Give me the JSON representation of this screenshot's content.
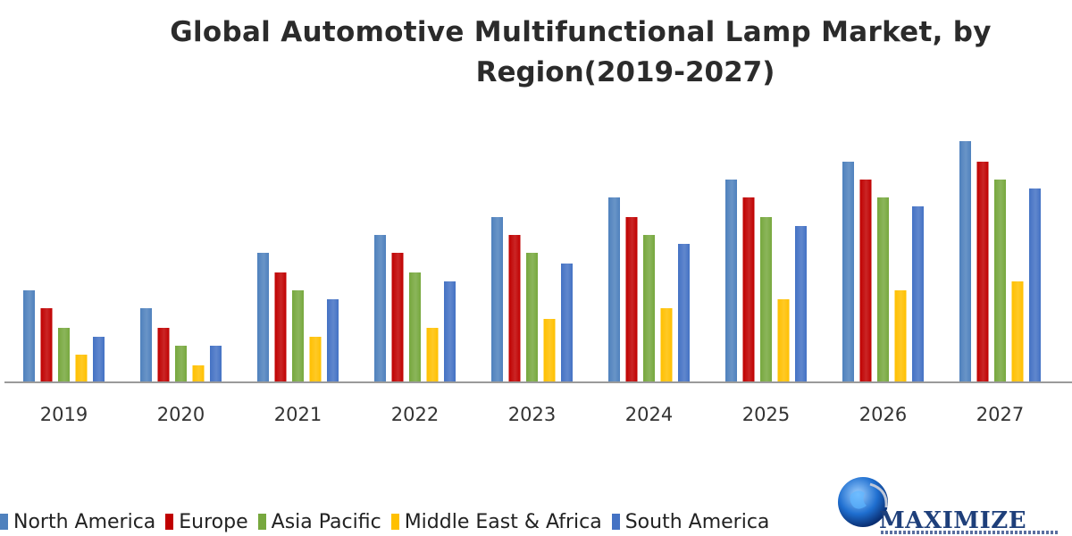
{
  "chart_data": {
    "type": "bar",
    "title_line1": "Global Automotive Multifunctional  Lamp Market, by",
    "title_line2": "Region(2019-2027)",
    "xlabel": "",
    "ylabel": "",
    "categories": [
      "2019",
      "2020",
      "2021",
      "2022",
      "2023",
      "2024",
      "2025",
      "2026",
      "2027"
    ],
    "ylim": [
      0,
      300
    ],
    "grid": false,
    "legend_position": "bottom",
    "series": [
      {
        "name": "North America",
        "color": "#4f81bd",
        "values": [
          103,
          83,
          145,
          165,
          185,
          207,
          227,
          247,
          270
        ]
      },
      {
        "name": "Europe",
        "color": "#c00000",
        "values": [
          83,
          61,
          123,
          145,
          165,
          185,
          207,
          227,
          247
        ]
      },
      {
        "name": "Asia Pacific",
        "color": "#77a83e",
        "values": [
          61,
          41,
          103,
          123,
          145,
          165,
          185,
          207,
          227
        ]
      },
      {
        "name": "Middle East & Africa",
        "color": "#ffc000",
        "values": [
          31,
          19,
          51,
          61,
          71,
          83,
          93,
          103,
          113
        ]
      },
      {
        "name": "South America",
        "color": "#4472c4",
        "values": [
          51,
          41,
          93,
          113,
          133,
          155,
          175,
          197,
          217
        ]
      }
    ]
  },
  "logo": {
    "text": "MAXIMIZE",
    "icon": "globe-icon"
  }
}
